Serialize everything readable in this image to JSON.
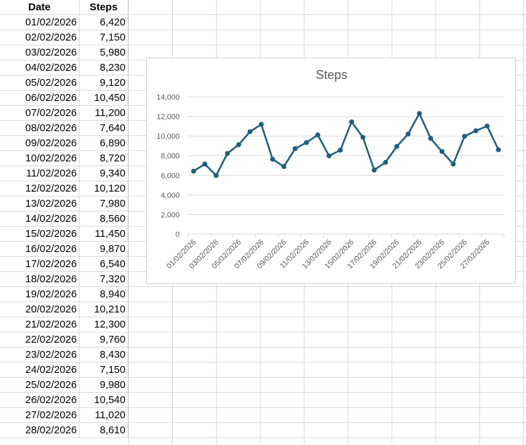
{
  "sheet": {
    "headers": {
      "date": "Date",
      "steps": "Steps"
    },
    "rows": [
      {
        "date": "01/02/2026",
        "steps": "6,420"
      },
      {
        "date": "02/02/2026",
        "steps": "7,150"
      },
      {
        "date": "03/02/2026",
        "steps": "5,980"
      },
      {
        "date": "04/02/2026",
        "steps": "8,230"
      },
      {
        "date": "05/02/2026",
        "steps": "9,120"
      },
      {
        "date": "06/02/2026",
        "steps": "10,450"
      },
      {
        "date": "07/02/2026",
        "steps": "11,200"
      },
      {
        "date": "08/02/2026",
        "steps": "7,640"
      },
      {
        "date": "09/02/2026",
        "steps": "6,890"
      },
      {
        "date": "10/02/2026",
        "steps": "8,720"
      },
      {
        "date": "11/02/2026",
        "steps": "9,340"
      },
      {
        "date": "12/02/2026",
        "steps": "10,120"
      },
      {
        "date": "13/02/2026",
        "steps": "7,980"
      },
      {
        "date": "14/02/2026",
        "steps": "8,560"
      },
      {
        "date": "15/02/2026",
        "steps": "11,450"
      },
      {
        "date": "16/02/2026",
        "steps": "9,870"
      },
      {
        "date": "17/02/2026",
        "steps": "6,540"
      },
      {
        "date": "18/02/2026",
        "steps": "7,320"
      },
      {
        "date": "19/02/2026",
        "steps": "8,940"
      },
      {
        "date": "20/02/2026",
        "steps": "10,210"
      },
      {
        "date": "21/02/2026",
        "steps": "12,300"
      },
      {
        "date": "22/02/2026",
        "steps": "9,760"
      },
      {
        "date": "23/02/2026",
        "steps": "8,430"
      },
      {
        "date": "24/02/2026",
        "steps": "7,150"
      },
      {
        "date": "25/02/2026",
        "steps": "9,980"
      },
      {
        "date": "26/02/2026",
        "steps": "10,540"
      },
      {
        "date": "27/02/2026",
        "steps": "11,020"
      },
      {
        "date": "28/02/2026",
        "steps": "8,610"
      }
    ]
  },
  "chart_data": {
    "type": "line",
    "title": "Steps",
    "xlabel": "",
    "ylabel": "",
    "series_color": "#1f5f7f",
    "categories": [
      "01/02/2026",
      "02/02/2026",
      "03/02/2026",
      "04/02/2026",
      "05/02/2026",
      "06/02/2026",
      "07/02/2026",
      "08/02/2026",
      "09/02/2026",
      "10/02/2026",
      "11/02/2026",
      "12/02/2026",
      "13/02/2026",
      "14/02/2026",
      "15/02/2026",
      "16/02/2026",
      "17/02/2026",
      "18/02/2026",
      "19/02/2026",
      "20/02/2026",
      "21/02/2026",
      "22/02/2026",
      "23/02/2026",
      "24/02/2026",
      "25/02/2026",
      "26/02/2026",
      "27/02/2026",
      "28/02/2026"
    ],
    "series": [
      {
        "name": "Steps",
        "values": [
          6420,
          7150,
          5980,
          8230,
          9120,
          10450,
          11200,
          7640,
          6890,
          8720,
          9340,
          10120,
          7980,
          8560,
          11450,
          9870,
          6540,
          7320,
          8940,
          10210,
          12300,
          9760,
          8430,
          7150,
          9980,
          10540,
          11020,
          8610
        ]
      }
    ],
    "ylim": [
      0,
      14000
    ],
    "yticks": [
      "0",
      "2,000",
      "4,000",
      "6,000",
      "8,000",
      "10,000",
      "12,000",
      "14,000"
    ],
    "xtick_labels": [
      "01/02/2026",
      "03/02/2026",
      "05/02/2026",
      "07/02/2026",
      "09/02/2026",
      "11/02/2026",
      "13/02/2026",
      "15/02/2026",
      "17/02/2026",
      "19/02/2026",
      "21/02/2026",
      "23/02/2026",
      "25/02/2026",
      "27/02/2026"
    ],
    "grid": true,
    "legend": "none"
  }
}
